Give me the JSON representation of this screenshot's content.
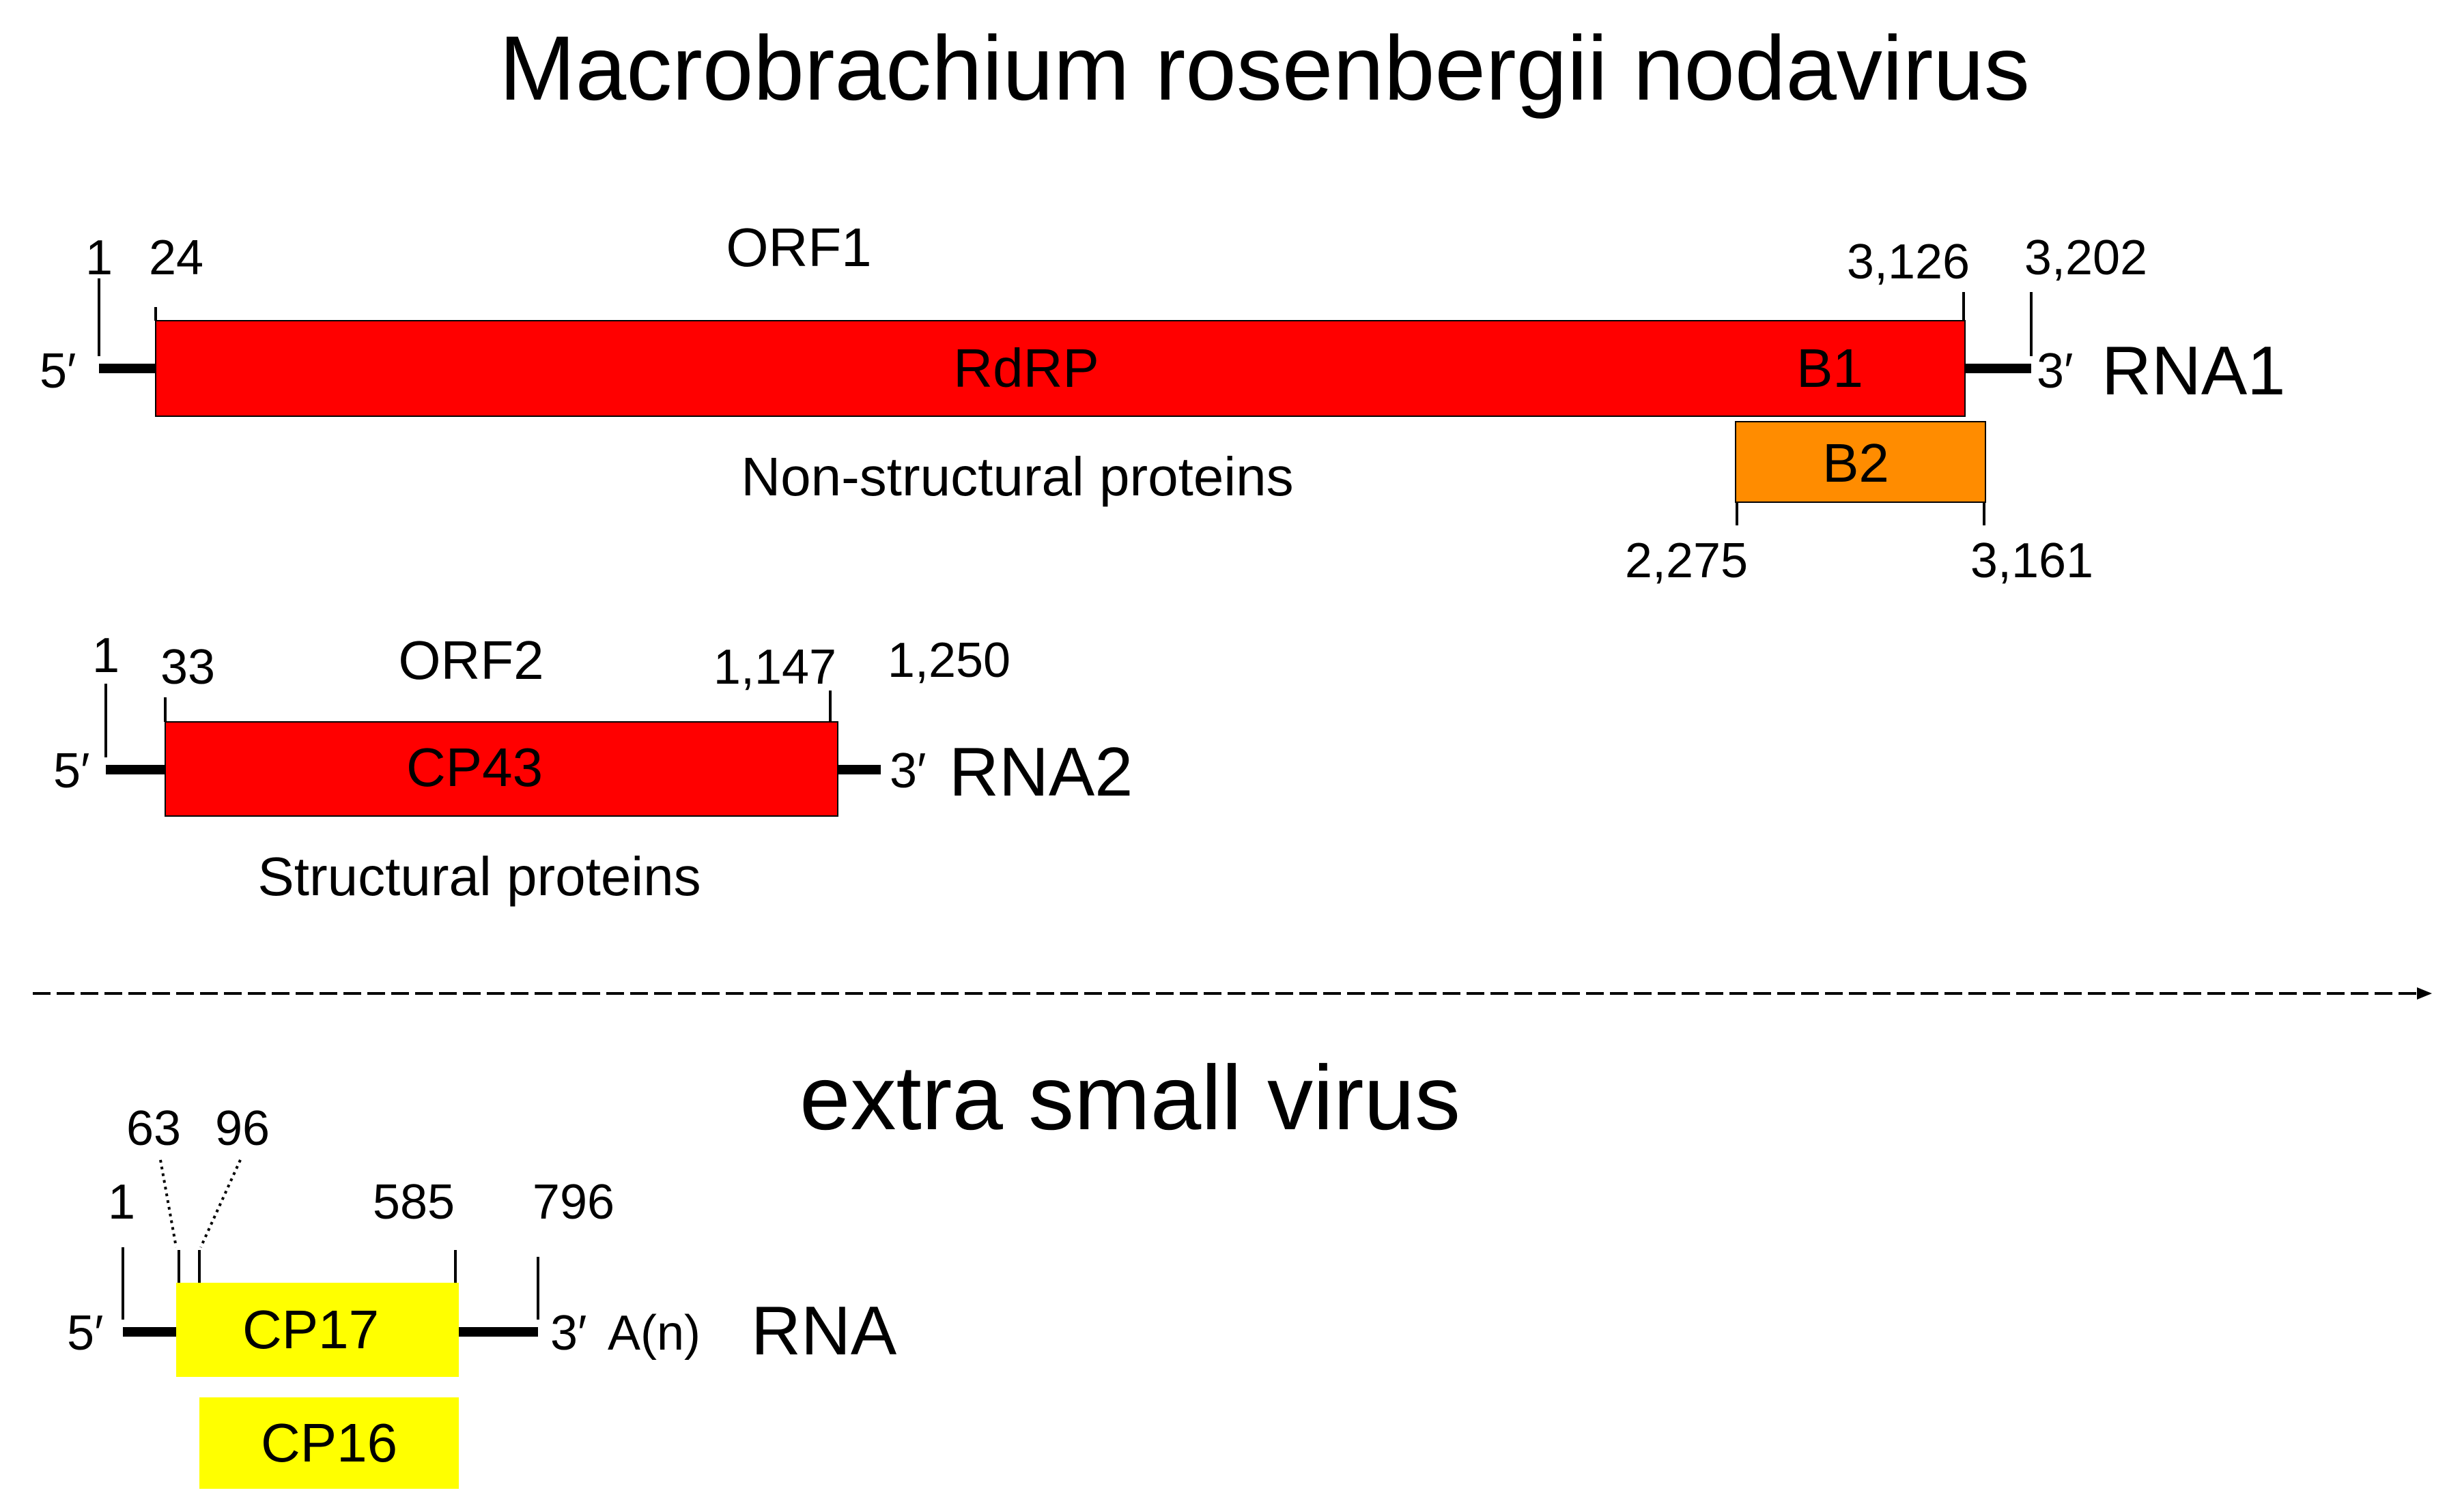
{
  "colors": {
    "red": "#ff0000",
    "orange": "#ff8c00",
    "yellow": "#ffff00",
    "line": "#000000"
  },
  "mrnv": {
    "title": "Macrobrachium rosenbergii nodavirus",
    "rna1": {
      "name": "RNA1",
      "orf_label": "ORF1",
      "five_prime": "5′",
      "three_prime": "3′",
      "start": "1",
      "orf_start": "24",
      "orf_end": "3,126",
      "end": "3,202",
      "rdrp_label": "RdRP",
      "b1_label": "B1",
      "b2_label": "B2",
      "b2_start": "2,275",
      "b2_end": "3,161",
      "caption": "Non-structural proteins"
    },
    "rna2": {
      "name": "RNA2",
      "orf_label": "ORF2",
      "five_prime": "5′",
      "three_prime": "3′",
      "start": "1",
      "orf_start": "33",
      "orf_end": "1,147",
      "end": "1,250",
      "cp_label": "CP43",
      "caption": "Structural proteins"
    }
  },
  "xsv": {
    "title": "extra small virus",
    "rna": {
      "name": "RNA",
      "five_prime": "5′",
      "three_prime": "3′",
      "poly_a": "A(n)",
      "start": "1",
      "orf_start_a": "63",
      "orf_start_b": "96",
      "orf_end": "585",
      "end": "796",
      "cp17_label": "CP17",
      "cp16_label": "CP16"
    }
  }
}
